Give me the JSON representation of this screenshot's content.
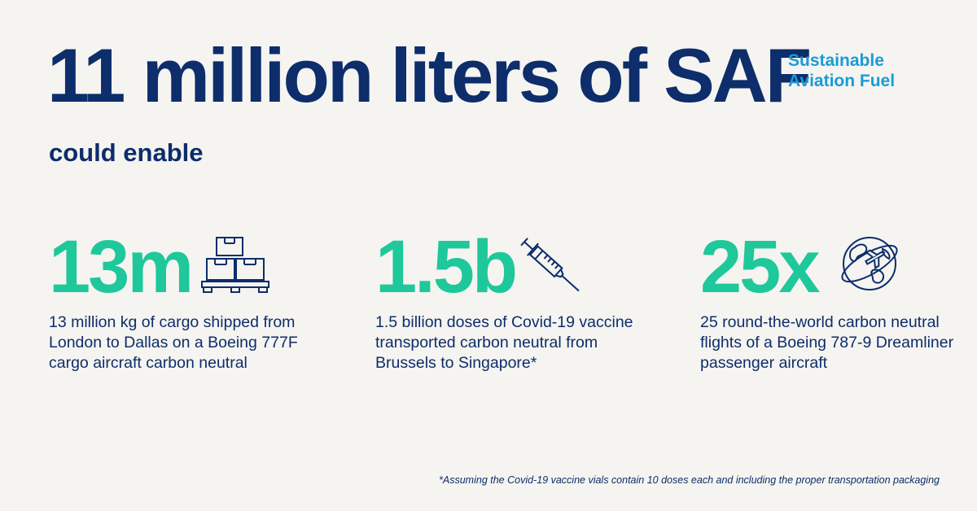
{
  "headline": "11 million liters of SAF",
  "saf_note": "Sustainable Aviation Fuel",
  "subhead": "could enable",
  "stats": [
    {
      "value": "13m",
      "icon": "cargo-pallet-icon",
      "description": "13 million kg of cargo shipped from London to Dallas on a Boeing 777F cargo aircraft carbon neutral"
    },
    {
      "value": "1.5b",
      "icon": "syringe-icon",
      "description": "1.5 billion doses of Covid-19 vaccine transported carbon neutral from Brussels to Singapore*"
    },
    {
      "value": "25x",
      "icon": "globe-airplane-icon",
      "description": "25 round-the-world carbon neutral flights of a Boeing 787-9 Dreamliner passenger aircraft"
    }
  ],
  "footnote": "*Assuming the Covid-19 vaccine vials contain 10 doses each and including the proper transportation packaging",
  "colors": {
    "background": "#f5f4f0",
    "navy": "#0d2d6b",
    "green": "#1ec89a",
    "blue": "#1a9bd7"
  }
}
